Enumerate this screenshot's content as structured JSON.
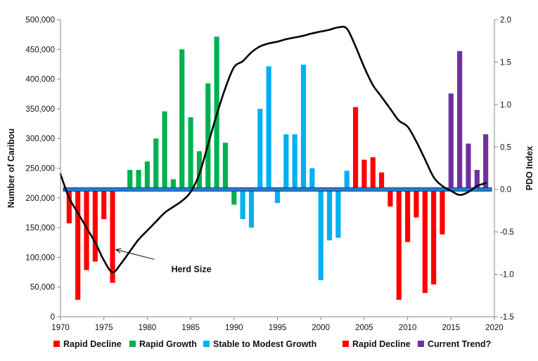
{
  "chart_data": {
    "type": "bar",
    "title": "",
    "xlabel": "",
    "ylabel": "Number of Caribou",
    "y2label": "PDO Index",
    "xlim": [
      1970,
      2020
    ],
    "xticks": [
      1970,
      1975,
      1980,
      1985,
      1990,
      1995,
      2000,
      2005,
      2010,
      2015,
      2020
    ],
    "ylim": [
      0,
      500000
    ],
    "yticks": [
      0,
      50000,
      100000,
      150000,
      200000,
      250000,
      300000,
      350000,
      400000,
      450000,
      500000
    ],
    "ytick_labels": [
      "0",
      "50,000",
      "100,000",
      "150,000",
      "200,000",
      "250,000",
      "300,000",
      "350,000",
      "400,000",
      "450,000",
      "500,000"
    ],
    "y2lim": [
      -1.5,
      2.0
    ],
    "y2ticks": [
      -1.5,
      -1.0,
      -0.5,
      0.0,
      0.5,
      1.0,
      1.5,
      2.0
    ],
    "y2tick_labels": [
      "-1.5",
      "-1.0",
      "-0.5",
      "0.0",
      "0.5",
      "1.0",
      "1.5",
      "2.0"
    ],
    "grid": false,
    "legend_position": "bottom",
    "colors": {
      "red": "#ff0000",
      "green": "#00b050",
      "blue": "#00b0f0",
      "purple": "#7030a0",
      "zero_line_fill": "#1f7fd8",
      "zero_line_edge": "#1f3b66",
      "herd_line": "#000000"
    },
    "legend": [
      {
        "label": "Rapid Decline",
        "color": "#ff0000"
      },
      {
        "label": "Rapid Growth",
        "color": "#00b050"
      },
      {
        "label": "Stable to Modest Growth",
        "color": "#00b0f0"
      },
      {
        "label": "Rapid Decline",
        "color": "#ff0000"
      },
      {
        "label": "Current Trend?",
        "color": "#7030a0"
      }
    ],
    "series": [
      {
        "name": "PDO Index",
        "axis": "right",
        "years": [
          1971,
          1972,
          1973,
          1974,
          1975,
          1976,
          1977,
          1978,
          1979,
          1980,
          1981,
          1982,
          1983,
          1984,
          1985,
          1986,
          1987,
          1988,
          1989,
          1990,
          1991,
          1992,
          1993,
          1994,
          1995,
          1996,
          1997,
          1998,
          1999,
          2000,
          2001,
          2002,
          2003,
          2004,
          2005,
          2006,
          2007,
          2008,
          2009,
          2010,
          2011,
          2012,
          2013,
          2014,
          2015,
          2016,
          2017,
          2018,
          2019
        ],
        "values": [
          -0.4,
          -1.3,
          -0.95,
          -0.85,
          -0.35,
          -1.1,
          0.0,
          0.23,
          0.23,
          0.33,
          0.6,
          0.92,
          0.12,
          1.65,
          0.85,
          0.45,
          1.25,
          1.8,
          0.55,
          -0.18,
          -0.35,
          -0.45,
          0.95,
          1.45,
          -0.16,
          0.65,
          0.65,
          1.47,
          0.25,
          -1.07,
          -0.6,
          -0.57,
          0.22,
          0.97,
          0.35,
          0.38,
          0.2,
          -0.2,
          -1.3,
          -0.62,
          -0.33,
          -1.22,
          -1.12,
          -0.53,
          1.13,
          1.63,
          0.54,
          0.23,
          0.65
        ],
        "colors": [
          "red",
          "red",
          "red",
          "red",
          "red",
          "red",
          "green",
          "green",
          "green",
          "green",
          "green",
          "green",
          "green",
          "green",
          "green",
          "green",
          "green",
          "green",
          "green",
          "green",
          "blue",
          "blue",
          "blue",
          "blue",
          "blue",
          "blue",
          "blue",
          "blue",
          "blue",
          "blue",
          "blue",
          "blue",
          "blue",
          "red",
          "red",
          "red",
          "red",
          "red",
          "red",
          "red",
          "red",
          "red",
          "red",
          "red",
          "purple",
          "purple",
          "purple",
          "purple",
          "purple"
        ]
      },
      {
        "name": "Herd Size",
        "axis": "left",
        "type": "line",
        "x": [
          1970,
          1971,
          1972,
          1973,
          1974,
          1975,
          1976,
          1977,
          1978,
          1979,
          1980,
          1981,
          1982,
          1983,
          1984,
          1985,
          1986,
          1987,
          1988,
          1989,
          1990,
          1991,
          1992,
          1993,
          1994,
          1995,
          1996,
          1997,
          1998,
          1999,
          2000,
          2001,
          2002,
          2003,
          2004,
          2005,
          2006,
          2007,
          2008,
          2009,
          2010,
          2011,
          2012,
          2013,
          2014,
          2015,
          2016,
          2017,
          2018,
          2019
        ],
        "values": [
          240000,
          200000,
          175000,
          150000,
          125000,
          95000,
          75000,
          90000,
          110000,
          130000,
          145000,
          160000,
          175000,
          185000,
          195000,
          210000,
          240000,
          290000,
          340000,
          385000,
          420000,
          430000,
          445000,
          455000,
          460000,
          463000,
          467000,
          470000,
          473000,
          477000,
          480000,
          483000,
          487000,
          485000,
          455000,
          420000,
          390000,
          370000,
          350000,
          330000,
          320000,
          295000,
          265000,
          235000,
          220000,
          212000,
          205000,
          210000,
          220000,
          225000
        ]
      }
    ],
    "annotations": [
      {
        "text": "Herd Size",
        "x": 1980.5,
        "y": 80000,
        "arrow_to": [
          1976.4,
          113000
        ]
      }
    ]
  }
}
